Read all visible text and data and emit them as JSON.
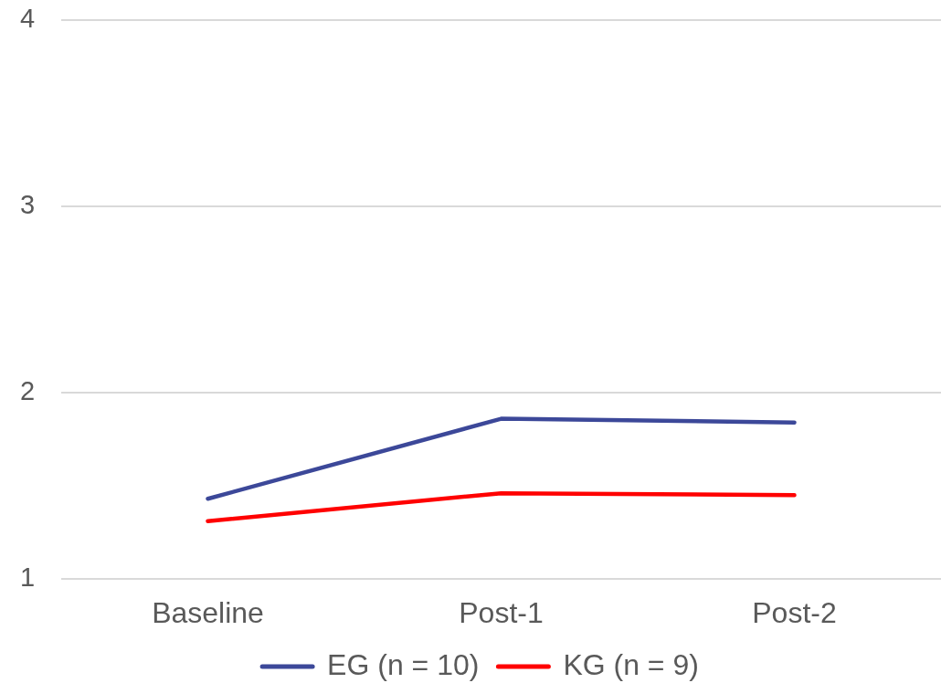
{
  "chart_data": {
    "type": "line",
    "categories": [
      "Baseline",
      "Post-1",
      "Post-2"
    ],
    "series": [
      {
        "name": "EG (n = 10)",
        "color": "#3c4899",
        "values": [
          1.43,
          1.86,
          1.84
        ]
      },
      {
        "name": "KG (n = 9)",
        "color": "#ff0000",
        "values": [
          1.31,
          1.46,
          1.45
        ]
      }
    ],
    "ylim": [
      1,
      4
    ],
    "yticks": [
      1,
      2,
      3,
      4
    ],
    "grid": "y",
    "legend": "bottom",
    "marker": "none",
    "line_style": "solid"
  }
}
